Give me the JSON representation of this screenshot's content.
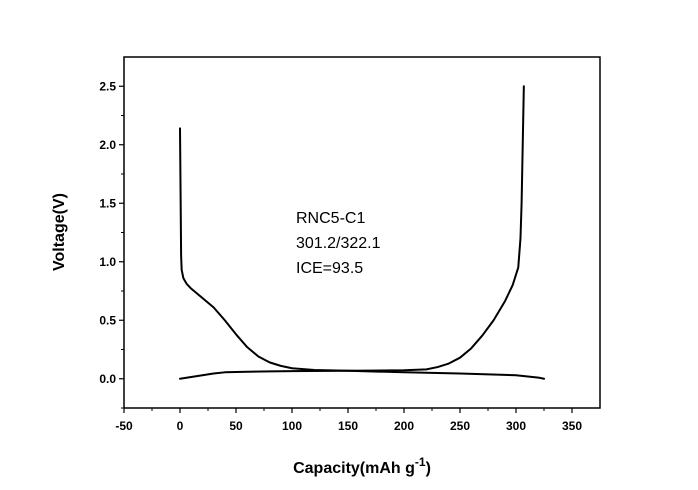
{
  "chart_data": {
    "type": "line",
    "xlabel": "Capacity(mAh g",
    "xlabel_superscript": "-1",
    "xlabel_suffix": ")",
    "ylabel": "Voltage(V)",
    "xlim": [
      -50,
      375
    ],
    "ylim": [
      -0.25,
      2.75
    ],
    "xticks": [
      -50,
      0,
      50,
      100,
      150,
      200,
      250,
      300,
      350
    ],
    "yticks": [
      0.0,
      0.5,
      1.0,
      1.5,
      2.0,
      2.5
    ],
    "ytick_labels": [
      "0.0",
      "0.5",
      "1.0",
      "1.5",
      "2.0",
      "2.5"
    ],
    "grid": false,
    "annotations": [
      "RNC5-C1",
      "301.2/322.1",
      "ICE=93.5"
    ],
    "series": [
      {
        "id": "discharge-curve",
        "color": "#000000",
        "points": [
          [
            0,
            2.14
          ],
          [
            0.5,
            1.6
          ],
          [
            1,
            1.05
          ],
          [
            1.5,
            0.93
          ],
          [
            3,
            0.86
          ],
          [
            6,
            0.81
          ],
          [
            10,
            0.77
          ],
          [
            20,
            0.69
          ],
          [
            30,
            0.61
          ],
          [
            40,
            0.5
          ],
          [
            50,
            0.38
          ],
          [
            60,
            0.27
          ],
          [
            70,
            0.19
          ],
          [
            80,
            0.14
          ],
          [
            90,
            0.11
          ],
          [
            100,
            0.09
          ],
          [
            120,
            0.075
          ],
          [
            150,
            0.068
          ],
          [
            200,
            0.055
          ],
          [
            250,
            0.045
          ],
          [
            300,
            0.03
          ],
          [
            320,
            0.01
          ],
          [
            325,
            0.0
          ]
        ]
      },
      {
        "id": "charge-curve",
        "color": "#000000",
        "points": [
          [
            0,
            0.0
          ],
          [
            10,
            0.015
          ],
          [
            20,
            0.03
          ],
          [
            30,
            0.045
          ],
          [
            40,
            0.055
          ],
          [
            60,
            0.06
          ],
          [
            80,
            0.063
          ],
          [
            100,
            0.065
          ],
          [
            150,
            0.068
          ],
          [
            200,
            0.073
          ],
          [
            220,
            0.08
          ],
          [
            230,
            0.1
          ],
          [
            240,
            0.13
          ],
          [
            250,
            0.18
          ],
          [
            260,
            0.26
          ],
          [
            270,
            0.37
          ],
          [
            280,
            0.5
          ],
          [
            290,
            0.66
          ],
          [
            297,
            0.8
          ],
          [
            302,
            0.95
          ],
          [
            304,
            1.2
          ],
          [
            305,
            1.5
          ],
          [
            306,
            2.0
          ],
          [
            307,
            2.5
          ]
        ]
      }
    ]
  }
}
